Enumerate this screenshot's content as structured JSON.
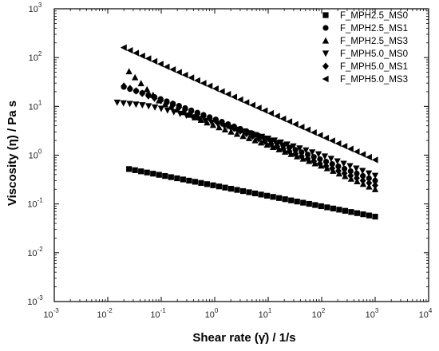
{
  "chart_data": {
    "type": "scatter",
    "title": "",
    "xlabel": "Shear rate (γ̇) / 1/s",
    "ylabel": "Viscosity (η) / Pa s",
    "x_scale": "log",
    "y_scale": "log",
    "xlim": [
      0.001,
      10000
    ],
    "ylim": [
      0.001,
      1000
    ],
    "x_ticks": [
      {
        "value": 0.001,
        "base": "10",
        "exp": "-3"
      },
      {
        "value": 0.01,
        "base": "10",
        "exp": "-2"
      },
      {
        "value": 0.1,
        "base": "10",
        "exp": "-1"
      },
      {
        "value": 1,
        "base": "10",
        "exp": "0"
      },
      {
        "value": 10,
        "base": "10",
        "exp": "1"
      },
      {
        "value": 100,
        "base": "10",
        "exp": "2"
      },
      {
        "value": 1000,
        "base": "10",
        "exp": "3"
      },
      {
        "value": 10000,
        "base": "10",
        "exp": "4"
      }
    ],
    "y_ticks": [
      {
        "value": 0.001,
        "base": "10",
        "exp": "-3"
      },
      {
        "value": 0.01,
        "base": "10",
        "exp": "-2"
      },
      {
        "value": 0.1,
        "base": "10",
        "exp": "-1"
      },
      {
        "value": 1,
        "base": "10",
        "exp": "0"
      },
      {
        "value": 10,
        "base": "10",
        "exp": "1"
      },
      {
        "value": 100,
        "base": "10",
        "exp": "2"
      },
      {
        "value": 1000,
        "base": "10",
        "exp": "3"
      }
    ],
    "grid": false,
    "legend_position": "top-right",
    "series": [
      {
        "name": "F_MPH2.5_MS0",
        "marker": "square",
        "x": [
          0.025,
          1000
        ],
        "y": [
          0.52,
          0.055
        ]
      },
      {
        "name": "F_MPH2.5_MS1",
        "marker": "circle",
        "x": [
          0.02,
          0.1,
          1,
          10,
          100,
          1000
        ],
        "y": [
          25,
          14,
          5.5,
          2.1,
          0.8,
          0.3
        ]
      },
      {
        "name": "F_MPH2.5_MS3",
        "marker": "triangle-up",
        "x": [
          0.025,
          0.06,
          0.1,
          0.3,
          1,
          10,
          100,
          1000
        ],
        "y": [
          52,
          20,
          12,
          7,
          4,
          1.6,
          0.6,
          0.2
        ]
      },
      {
        "name": "F_MPH5.0_MS0",
        "marker": "triangle-down",
        "x": [
          0.015,
          0.05,
          0.1,
          0.3,
          1,
          10,
          100,
          1000
        ],
        "y": [
          12,
          10.5,
          9,
          6.5,
          4.5,
          2.2,
          1.0,
          0.38
        ]
      },
      {
        "name": "F_MPH5.0_MS1",
        "marker": "diamond",
        "x": [
          0.02,
          0.1,
          1,
          10,
          100,
          1000
        ],
        "y": [
          26,
          13,
          5.2,
          1.8,
          0.65,
          0.24
        ]
      },
      {
        "name": "F_MPH5.0_MS3",
        "marker": "triangle-left",
        "x": [
          0.02,
          1000
        ],
        "y": [
          160,
          0.8
        ]
      }
    ]
  }
}
